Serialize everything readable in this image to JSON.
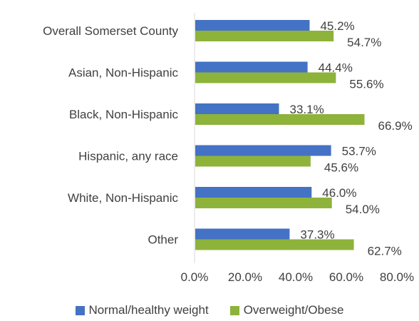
{
  "chart_data": {
    "type": "bar",
    "orientation": "horizontal",
    "categories": [
      "Overall Somerset County",
      "Asian, Non-Hispanic",
      "Black, Non-Hispanic",
      "Hispanic, any race",
      "White, Non-Hispanic",
      "Other"
    ],
    "series": [
      {
        "name": "Normal/healthy weight",
        "color": "#4472C4",
        "values": [
          45.2,
          44.4,
          33.1,
          53.7,
          46.0,
          37.3
        ]
      },
      {
        "name": "Overweight/Obese",
        "color": "#8DB33A",
        "values": [
          54.7,
          55.6,
          66.9,
          45.6,
          54.0,
          62.7
        ]
      }
    ],
    "value_labels": [
      [
        "45.2%",
        "44.4%",
        "33.1%",
        "53.7%",
        "46.0%",
        "37.3%"
      ],
      [
        "54.7%",
        "55.6%",
        "66.9%",
        "45.6%",
        "54.0%",
        "62.7%"
      ]
    ],
    "xlim": [
      0,
      80
    ],
    "x_ticks": [
      "0.0%",
      "20.0%",
      "40.0%",
      "60.0%",
      "80.0%"
    ],
    "grid": false,
    "legend_position": "bottom"
  }
}
